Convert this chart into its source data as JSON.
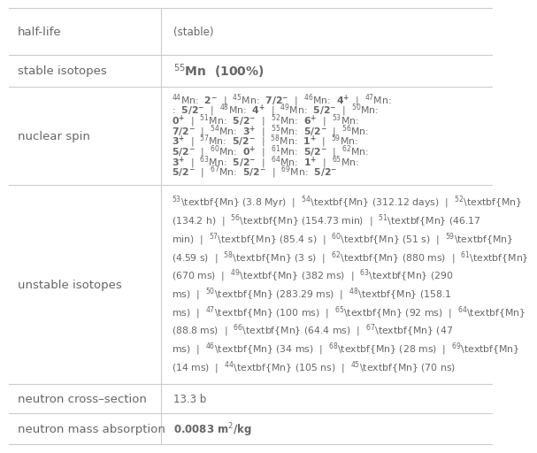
{
  "col_split": 0.315,
  "label_color": "#666666",
  "border_color": "#cccccc",
  "background_color": "#ffffff",
  "label_fontsize": 9.5,
  "content_fontsize": 8.5,
  "row_tops": [
    1.0,
    0.893,
    0.82,
    0.595,
    0.138,
    0.07,
    0.0
  ],
  "nuclear_lines": [
    "$^{44}$Mn:  $\\mathbf{2^{-}}$  |  $^{45}$Mn:  $\\mathbf{7/2^{-}}$  |  $^{46}$Mn:  $\\mathbf{4^{+}}$  |  $^{47}$Mn:",
    ":  $\\mathbf{5/2^{-}}$  |  $^{48}$Mn:  $\\mathbf{4^{+}}$  |  $^{49}$Mn:  $\\mathbf{5/2^{-}}$  |  $^{50}$Mn:",
    "$\\mathbf{0^{+}}$  |  $^{51}$Mn:  $\\mathbf{5/2^{-}}$  |  $^{52}$Mn:  $\\mathbf{6^{+}}$  |  $^{53}$Mn:",
    "$\\mathbf{7/2^{-}}$  |  $^{54}$Mn:  $\\mathbf{3^{+}}$  |  $^{55}$Mn:  $\\mathbf{5/2^{-}}$  |  $^{56}$Mn:",
    "$\\mathbf{3^{+}}$  |  $^{57}$Mn:  $\\mathbf{5/2^{-}}$  |  $^{58}$Mn:  $\\mathbf{1^{+}}$  |  $^{59}$Mn:",
    "$\\mathbf{5/2^{-}}$  |  $^{60}$Mn:  $\\mathbf{0^{+}}$  |  $^{61}$Mn:  $\\mathbf{5/2^{-}}$  |  $^{62}$Mn:",
    "$\\mathbf{3^{+}}$  |  $^{63}$Mn:  $\\mathbf{5/2^{-}}$  |  $^{64}$Mn:  $\\mathbf{1^{+}}$  |  $^{65}$Mn:",
    "$\\mathbf{5/2^{-}}$  |  $^{67}$Mn:  $\\mathbf{5/2^{-}}$  |  $^{69}$Mn:  $\\mathbf{5/2^{-}}$"
  ],
  "unstable_lines": [
    "$^{53}$\\textbf{Mn} (3.8 Myr)  |  $^{54}$\\textbf{Mn} (312.12 days)  |  $^{52}$\\textbf{Mn}",
    "(134.2 h)  |  $^{56}$\\textbf{Mn} (154.73 min)  |  $^{51}$\\textbf{Mn} (46.17",
    "min)  |  $^{57}$\\textbf{Mn} (85.4 s)  |  $^{60}$\\textbf{Mn} (51 s)  |  $^{59}$\\textbf{Mn}",
    "(4.59 s)  |  $^{58}$\\textbf{Mn} (3 s)  |  $^{62}$\\textbf{Mn} (880 ms)  |  $^{61}$\\textbf{Mn}",
    "(670 ms)  |  $^{49}$\\textbf{Mn} (382 ms)  |  $^{63}$\\textbf{Mn} (290",
    "ms)  |  $^{50}$\\textbf{Mn} (283.29 ms)  |  $^{48}$\\textbf{Mn} (158.1",
    "ms)  |  $^{47}$\\textbf{Mn} (100 ms)  |  $^{65}$\\textbf{Mn} (92 ms)  |  $^{64}$\\textbf{Mn}",
    "(88.8 ms)  |  $^{66}$\\textbf{Mn} (64.4 ms)  |  $^{67}$\\textbf{Mn} (47",
    "ms)  |  $^{46}$\\textbf{Mn} (34 ms)  |  $^{68}$\\textbf{Mn} (28 ms)  |  $^{69}$\\textbf{Mn}",
    "(14 ms)  |  $^{44}$\\textbf{Mn} (105 ns)  |  $^{45}$\\textbf{Mn} (70 ns)"
  ]
}
